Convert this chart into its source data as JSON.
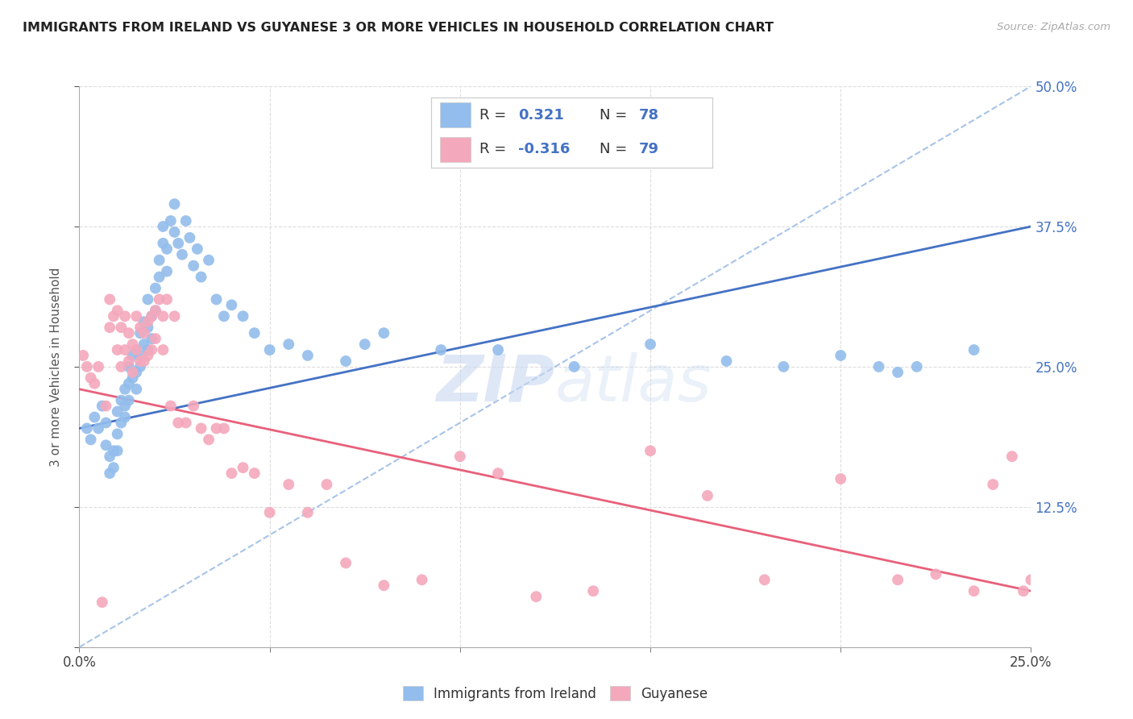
{
  "title": "IMMIGRANTS FROM IRELAND VS GUYANESE 3 OR MORE VEHICLES IN HOUSEHOLD CORRELATION CHART",
  "source": "Source: ZipAtlas.com",
  "ylabel_label": "3 or more Vehicles in Household",
  "legend_labels": [
    "Immigrants from Ireland",
    "Guyanese"
  ],
  "r_values": [
    "0.321",
    "-0.316"
  ],
  "n_values": [
    "78",
    "79"
  ],
  "blue_color": "#92BDEC",
  "pink_color": "#F4A8BC",
  "blue_line_color": "#4472C4",
  "pink_line_color": "#E8607A",
  "dashed_line_color": "#A8C4E8",
  "text_blue": "#4472C4",
  "r_text_color": "#333333",
  "background_color": "#FFFFFF",
  "grid_color": "#DDDDDD",
  "title_color": "#222222",
  "watermark_zip": "ZIP",
  "watermark_atlas": "atlas",
  "xlim": [
    0.0,
    0.25
  ],
  "ylim": [
    0.0,
    0.5
  ],
  "blue_scatter_x": [
    0.002,
    0.003,
    0.004,
    0.005,
    0.006,
    0.007,
    0.007,
    0.008,
    0.008,
    0.009,
    0.009,
    0.01,
    0.01,
    0.01,
    0.011,
    0.011,
    0.012,
    0.012,
    0.012,
    0.013,
    0.013,
    0.013,
    0.014,
    0.014,
    0.015,
    0.015,
    0.015,
    0.016,
    0.016,
    0.016,
    0.017,
    0.017,
    0.018,
    0.018,
    0.018,
    0.019,
    0.019,
    0.02,
    0.02,
    0.021,
    0.021,
    0.022,
    0.022,
    0.023,
    0.023,
    0.024,
    0.025,
    0.025,
    0.026,
    0.027,
    0.028,
    0.029,
    0.03,
    0.031,
    0.032,
    0.034,
    0.036,
    0.038,
    0.04,
    0.043,
    0.046,
    0.05,
    0.055,
    0.06,
    0.07,
    0.075,
    0.08,
    0.095,
    0.11,
    0.13,
    0.15,
    0.17,
    0.185,
    0.2,
    0.21,
    0.215,
    0.22,
    0.235
  ],
  "blue_scatter_y": [
    0.195,
    0.185,
    0.205,
    0.195,
    0.215,
    0.2,
    0.18,
    0.17,
    0.155,
    0.16,
    0.175,
    0.175,
    0.19,
    0.21,
    0.2,
    0.22,
    0.215,
    0.23,
    0.205,
    0.235,
    0.25,
    0.22,
    0.26,
    0.24,
    0.265,
    0.245,
    0.23,
    0.28,
    0.26,
    0.25,
    0.29,
    0.27,
    0.31,
    0.285,
    0.265,
    0.295,
    0.275,
    0.32,
    0.3,
    0.345,
    0.33,
    0.36,
    0.375,
    0.355,
    0.335,
    0.38,
    0.395,
    0.37,
    0.36,
    0.35,
    0.38,
    0.365,
    0.34,
    0.355,
    0.33,
    0.345,
    0.31,
    0.295,
    0.305,
    0.295,
    0.28,
    0.265,
    0.27,
    0.26,
    0.255,
    0.27,
    0.28,
    0.265,
    0.265,
    0.25,
    0.27,
    0.255,
    0.25,
    0.26,
    0.25,
    0.245,
    0.25,
    0.265
  ],
  "pink_scatter_x": [
    0.001,
    0.002,
    0.003,
    0.004,
    0.005,
    0.006,
    0.007,
    0.008,
    0.008,
    0.009,
    0.01,
    0.01,
    0.011,
    0.011,
    0.012,
    0.012,
    0.013,
    0.013,
    0.014,
    0.014,
    0.015,
    0.015,
    0.016,
    0.016,
    0.017,
    0.017,
    0.018,
    0.018,
    0.019,
    0.019,
    0.02,
    0.02,
    0.021,
    0.022,
    0.022,
    0.023,
    0.024,
    0.025,
    0.026,
    0.028,
    0.03,
    0.032,
    0.034,
    0.036,
    0.038,
    0.04,
    0.043,
    0.046,
    0.05,
    0.055,
    0.06,
    0.065,
    0.07,
    0.08,
    0.09,
    0.1,
    0.11,
    0.12,
    0.135,
    0.15,
    0.165,
    0.18,
    0.2,
    0.215,
    0.225,
    0.235,
    0.24,
    0.245,
    0.248,
    0.25,
    0.252,
    0.255,
    0.258,
    0.26,
    0.265,
    0.268,
    0.27,
    0.272,
    0.275
  ],
  "pink_scatter_y": [
    0.26,
    0.25,
    0.24,
    0.235,
    0.25,
    0.04,
    0.215,
    0.285,
    0.31,
    0.295,
    0.3,
    0.265,
    0.285,
    0.25,
    0.295,
    0.265,
    0.28,
    0.255,
    0.27,
    0.245,
    0.295,
    0.265,
    0.285,
    0.255,
    0.28,
    0.255,
    0.29,
    0.26,
    0.295,
    0.265,
    0.3,
    0.275,
    0.31,
    0.295,
    0.265,
    0.31,
    0.215,
    0.295,
    0.2,
    0.2,
    0.215,
    0.195,
    0.185,
    0.195,
    0.195,
    0.155,
    0.16,
    0.155,
    0.12,
    0.145,
    0.12,
    0.145,
    0.075,
    0.055,
    0.06,
    0.17,
    0.155,
    0.045,
    0.05,
    0.175,
    0.135,
    0.06,
    0.15,
    0.06,
    0.065,
    0.05,
    0.145,
    0.17,
    0.05,
    0.06,
    0.06,
    0.065,
    0.05,
    0.05,
    0.06,
    0.06,
    0.05,
    0.06,
    0.05
  ],
  "blue_line_x": [
    0.0,
    0.25
  ],
  "blue_line_y": [
    0.195,
    0.375
  ],
  "pink_line_x": [
    0.0,
    0.25
  ],
  "pink_line_y": [
    0.23,
    0.05
  ],
  "dashed_line_x": [
    0.0,
    0.25
  ],
  "dashed_line_y": [
    0.0,
    0.5
  ]
}
